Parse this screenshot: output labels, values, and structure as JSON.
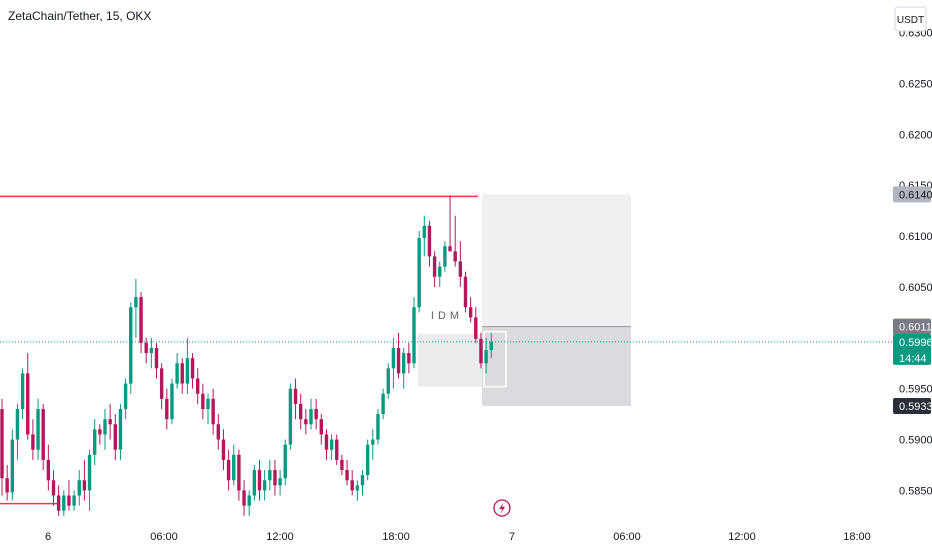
{
  "title": "ZetaChain/Tether, 15, OKX",
  "currency_button": "USDT",
  "colors": {
    "up": "#089981",
    "down": "#b5165c",
    "resistance": "#f23645",
    "current_price": "#089981",
    "tag_dark": "#2a2e39",
    "tag_gray": "#b2b5be",
    "zone_light": "#f0f0f1",
    "zone_gray": "#dadbde"
  },
  "chart_data": {
    "type": "candlestick",
    "ylim": [
      0.5817,
      0.6332
    ],
    "y_ticks": [
      "0.6300",
      "0.6250",
      "0.6200",
      "0.6150",
      "0.6100",
      "0.6050",
      "0.5950",
      "0.5900",
      "0.5850"
    ],
    "x_ticks": [
      "6",
      "06:00",
      "12:00",
      "18:00",
      "7",
      "06:00",
      "12:00",
      "18:00"
    ],
    "price_tags": {
      "resistance_level": "0.6140",
      "entry_level": "0.6011",
      "current_price": "0.5996",
      "countdown": "14:44",
      "stop_level": "0.5933"
    },
    "annotation": "IDM",
    "levels": {
      "resistance": 0.6139,
      "entry": 0.6011,
      "current": 0.5996,
      "stop": 0.5933,
      "box_top": 0.6141,
      "support": 0.5837
    },
    "candles": [
      [
        0.593,
        0.594,
        0.5845,
        0.5862
      ],
      [
        0.5862,
        0.5875,
        0.584,
        0.5848
      ],
      [
        0.5848,
        0.591,
        0.584,
        0.59
      ],
      [
        0.59,
        0.5935,
        0.588,
        0.593
      ],
      [
        0.593,
        0.597,
        0.592,
        0.5965
      ],
      [
        0.5965,
        0.5985,
        0.59,
        0.5905
      ],
      [
        0.5905,
        0.592,
        0.588,
        0.589
      ],
      [
        0.589,
        0.594,
        0.588,
        0.593
      ],
      [
        0.593,
        0.5935,
        0.587,
        0.588
      ],
      [
        0.588,
        0.5895,
        0.585,
        0.586
      ],
      [
        0.586,
        0.587,
        0.5835,
        0.5845
      ],
      [
        0.5845,
        0.5855,
        0.5825,
        0.583
      ],
      [
        0.583,
        0.585,
        0.5825,
        0.5845
      ],
      [
        0.5845,
        0.586,
        0.583,
        0.5835
      ],
      [
        0.5835,
        0.585,
        0.583,
        0.5845
      ],
      [
        0.5845,
        0.587,
        0.5835,
        0.586
      ],
      [
        0.586,
        0.588,
        0.584,
        0.585
      ],
      [
        0.585,
        0.589,
        0.583,
        0.5885
      ],
      [
        0.5885,
        0.592,
        0.5875,
        0.591
      ],
      [
        0.591,
        0.5915,
        0.5895,
        0.5905
      ],
      [
        0.5905,
        0.593,
        0.589,
        0.592
      ],
      [
        0.592,
        0.5935,
        0.59,
        0.5915
      ],
      [
        0.5915,
        0.5925,
        0.588,
        0.589
      ],
      [
        0.589,
        0.5935,
        0.588,
        0.593
      ],
      [
        0.593,
        0.596,
        0.592,
        0.5955
      ],
      [
        0.5955,
        0.6035,
        0.5945,
        0.603
      ],
      [
        0.603,
        0.6058,
        0.6,
        0.604
      ],
      [
        0.604,
        0.6045,
        0.5985,
        0.5995
      ],
      [
        0.5995,
        0.6,
        0.5975,
        0.5985
      ],
      [
        0.5985,
        0.6,
        0.597,
        0.599
      ],
      [
        0.599,
        0.5995,
        0.596,
        0.597
      ],
      [
        0.597,
        0.5975,
        0.593,
        0.594
      ],
      [
        0.594,
        0.595,
        0.591,
        0.592
      ],
      [
        0.592,
        0.596,
        0.5915,
        0.5955
      ],
      [
        0.5955,
        0.5985,
        0.595,
        0.5975
      ],
      [
        0.5975,
        0.598,
        0.5945,
        0.5955
      ],
      [
        0.5955,
        0.6,
        0.5945,
        0.598
      ],
      [
        0.598,
        0.5985,
        0.595,
        0.596
      ],
      [
        0.596,
        0.597,
        0.5935,
        0.5945
      ],
      [
        0.5945,
        0.5955,
        0.592,
        0.593
      ],
      [
        0.593,
        0.5945,
        0.5915,
        0.594
      ],
      [
        0.594,
        0.595,
        0.5905,
        0.5915
      ],
      [
        0.5915,
        0.5925,
        0.589,
        0.59
      ],
      [
        0.59,
        0.591,
        0.587,
        0.588
      ],
      [
        0.588,
        0.589,
        0.585,
        0.586
      ],
      [
        0.586,
        0.5895,
        0.5855,
        0.5885
      ],
      [
        0.5885,
        0.589,
        0.584,
        0.585
      ],
      [
        0.585,
        0.586,
        0.5825,
        0.5835
      ],
      [
        0.5835,
        0.585,
        0.5825,
        0.5845
      ],
      [
        0.5845,
        0.5875,
        0.584,
        0.587
      ],
      [
        0.587,
        0.588,
        0.584,
        0.585
      ],
      [
        0.585,
        0.587,
        0.584,
        0.586
      ],
      [
        0.586,
        0.588,
        0.585,
        0.587
      ],
      [
        0.587,
        0.588,
        0.5845,
        0.5855
      ],
      [
        0.5855,
        0.587,
        0.5845,
        0.5862
      ],
      [
        0.5862,
        0.59,
        0.5855,
        0.5895
      ],
      [
        0.5895,
        0.5955,
        0.589,
        0.595
      ],
      [
        0.595,
        0.596,
        0.592,
        0.5935
      ],
      [
        0.5935,
        0.5945,
        0.591,
        0.592
      ],
      [
        0.592,
        0.593,
        0.5905,
        0.5915
      ],
      [
        0.5915,
        0.594,
        0.591,
        0.593
      ],
      [
        0.593,
        0.594,
        0.591,
        0.592
      ],
      [
        0.592,
        0.5925,
        0.5895,
        0.5905
      ],
      [
        0.5905,
        0.591,
        0.588,
        0.589
      ],
      [
        0.589,
        0.5905,
        0.588,
        0.59
      ],
      [
        0.59,
        0.5905,
        0.5875,
        0.588
      ],
      [
        0.588,
        0.5885,
        0.5865,
        0.587
      ],
      [
        0.587,
        0.588,
        0.5855,
        0.586
      ],
      [
        0.586,
        0.587,
        0.5845,
        0.585
      ],
      [
        0.585,
        0.586,
        0.584,
        0.5855
      ],
      [
        0.5855,
        0.587,
        0.5845,
        0.5865
      ],
      [
        0.5865,
        0.59,
        0.586,
        0.5895
      ],
      [
        0.5895,
        0.591,
        0.588,
        0.59
      ],
      [
        0.59,
        0.593,
        0.5895,
        0.5925
      ],
      [
        0.5925,
        0.595,
        0.592,
        0.5945
      ],
      [
        0.5945,
        0.5975,
        0.594,
        0.597
      ],
      [
        0.597,
        0.6,
        0.595,
        0.599
      ],
      [
        0.599,
        0.6005,
        0.596,
        0.5965
      ],
      [
        0.5965,
        0.599,
        0.595,
        0.5985
      ],
      [
        0.5985,
        0.5995,
        0.5965,
        0.5975
      ],
      [
        0.5975,
        0.604,
        0.597,
        0.603
      ],
      [
        0.603,
        0.6105,
        0.6025,
        0.6098
      ],
      [
        0.6098,
        0.612,
        0.608,
        0.611
      ],
      [
        0.611,
        0.6115,
        0.607,
        0.608
      ],
      [
        0.608,
        0.6085,
        0.605,
        0.606
      ],
      [
        0.606,
        0.6075,
        0.605,
        0.607
      ],
      [
        0.607,
        0.6095,
        0.6065,
        0.609
      ],
      [
        0.609,
        0.614,
        0.6085,
        0.6085
      ],
      [
        0.6085,
        0.612,
        0.607,
        0.6075
      ],
      [
        0.6075,
        0.6095,
        0.605,
        0.606
      ],
      [
        0.606,
        0.6065,
        0.6025,
        0.603
      ],
      [
        0.603,
        0.604,
        0.6015,
        0.602
      ],
      [
        0.602,
        0.603,
        0.5995,
        0.5999
      ],
      [
        0.5999,
        0.6005,
        0.597,
        0.5975
      ],
      [
        0.5975,
        0.6,
        0.5965,
        0.5988
      ],
      [
        0.5988,
        0.6005,
        0.598,
        0.5996
      ]
    ]
  }
}
